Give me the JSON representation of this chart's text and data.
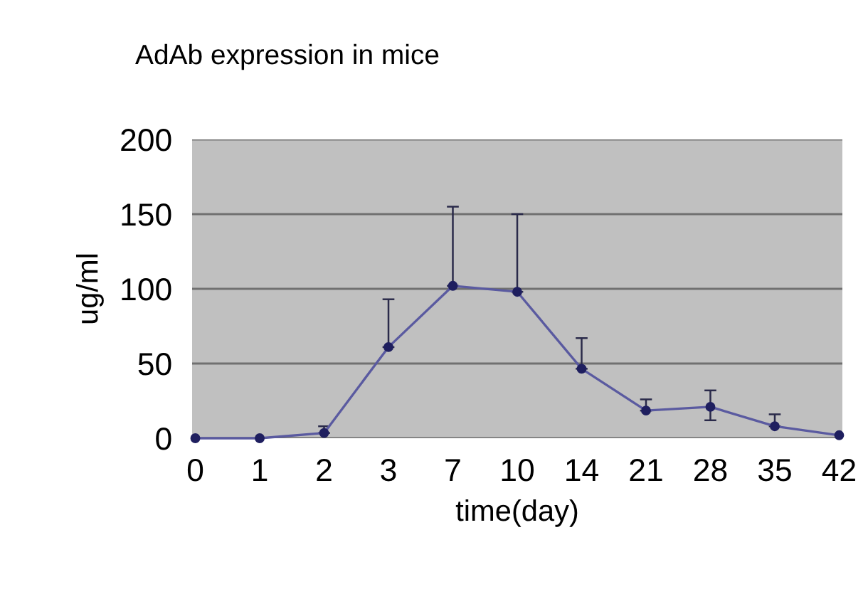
{
  "chart_data": {
    "type": "line",
    "title": "AdAb expression in mice",
    "xlabel": "time(day)",
    "ylabel": "ug/ml",
    "categories": [
      "0",
      "1",
      "2",
      "3",
      "7",
      "10",
      "14",
      "21",
      "28",
      "35",
      "42"
    ],
    "series": [
      {
        "color": "#5a5aa0",
        "values": [
          0,
          0,
          3.5,
          61,
          102,
          98,
          46.5,
          18.5,
          21,
          8,
          2
        ],
        "errors": [
          null,
          null,
          [
            3.5,
            8
          ],
          [
            61,
            93
          ],
          [
            102,
            155
          ],
          [
            98,
            150
          ],
          [
            46.5,
            67
          ],
          [
            18.5,
            26
          ],
          [
            12,
            32
          ],
          [
            8,
            16
          ],
          null
        ]
      }
    ],
    "ylim": [
      0,
      200
    ],
    "yticks": [
      0,
      50,
      100,
      150,
      200
    ],
    "grid": "y",
    "marker": "circle",
    "line_style": "solid",
    "legend": false
  }
}
